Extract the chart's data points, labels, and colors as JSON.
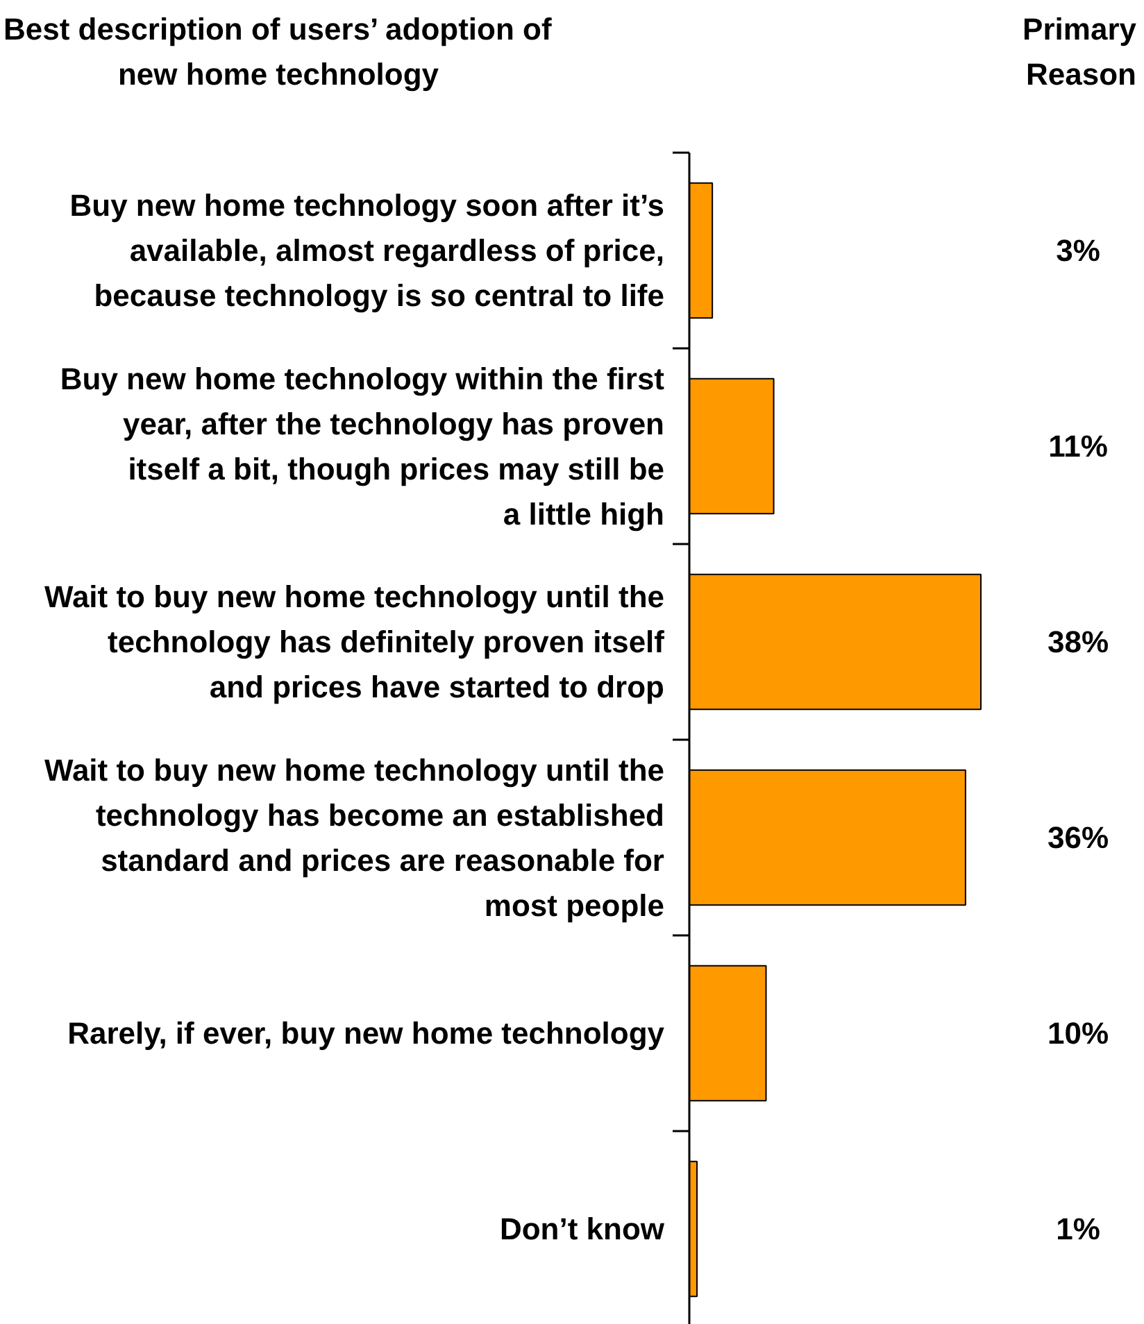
{
  "chart_data": {
    "type": "bar",
    "orientation": "horizontal",
    "title": "Best description of users’ adoption of new home technology",
    "annotations": [
      "Primary Reason"
    ],
    "categories": [
      "Buy new home technology soon after it’s available, almost regardless of price, because technology is so central to life",
      "Buy new home technology within the first year, after the technology has proven itself a bit, though prices may still be a little high",
      "Wait to buy new home technology until the technology has definitely proven itself and prices have started to drop",
      "Wait to buy new home technology until the technology has become an established standard and prices are reasonable for most people",
      "Rarely, if ever, buy new home technology",
      "Don’t know"
    ],
    "values": [
      3,
      11,
      38,
      36,
      10,
      1
    ],
    "color": "#ff9900",
    "value_labels": [
      "3%",
      "11%",
      "38%",
      "36%",
      "10%",
      "1%"
    ]
  }
}
